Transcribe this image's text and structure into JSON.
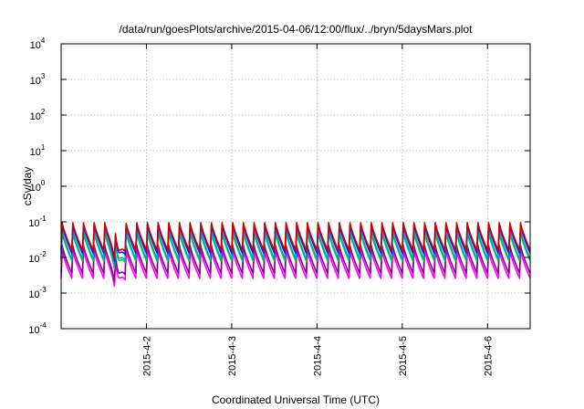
{
  "chart_data": {
    "type": "line",
    "title": "/data/run/goesPlots/archive/2015-04-06/12:00/flux/../bryn/5daysMars.plot",
    "xlabel": "Coordinated Universal Time (UTC)",
    "ylabel": "cSv/day",
    "y_scale": "log",
    "ylim": [
      0.0001,
      10000
    ],
    "xlim": [
      "2015-04-01 00:00",
      "2015-04-06 12:00"
    ],
    "grid": true,
    "y_ticks": [
      {
        "value": 0.0001,
        "base": "10",
        "exp": "-4"
      },
      {
        "value": 0.001,
        "base": "10",
        "exp": "-3"
      },
      {
        "value": 0.01,
        "base": "10",
        "exp": "-2"
      },
      {
        "value": 0.1,
        "base": "10",
        "exp": "-1"
      },
      {
        "value": 1,
        "base": "10",
        "exp": "0"
      },
      {
        "value": 10,
        "base": "10",
        "exp": "1"
      },
      {
        "value": 100,
        "base": "10",
        "exp": "2"
      },
      {
        "value": 1000,
        "base": "10",
        "exp": "3"
      },
      {
        "value": 10000,
        "base": "10",
        "exp": "4"
      }
    ],
    "x_ticks": [
      "2015-4-2",
      "2015-4-3",
      "2015-4-4",
      "2015-4-5",
      "2015-4-6"
    ],
    "pattern": {
      "period_hours": 3,
      "dip_center": "2015-04-01 16:00",
      "dip_factor": 0.35
    },
    "series": [
      {
        "color": "#cc0000",
        "peak": 0.095,
        "trough": 0.016
      },
      {
        "color": "#1a1aff",
        "peak": 0.085,
        "trough": 0.013
      },
      {
        "color": "#00aaaa",
        "peak": 0.06,
        "trough": 0.009
      },
      {
        "color": "#00cc44",
        "peak": 0.05,
        "trough": 0.008
      },
      {
        "color": "#8b008b",
        "peak": 0.022,
        "trough": 0.0036
      },
      {
        "color": "#ff00ff",
        "peak": 0.016,
        "trough": 0.0026
      }
    ]
  }
}
